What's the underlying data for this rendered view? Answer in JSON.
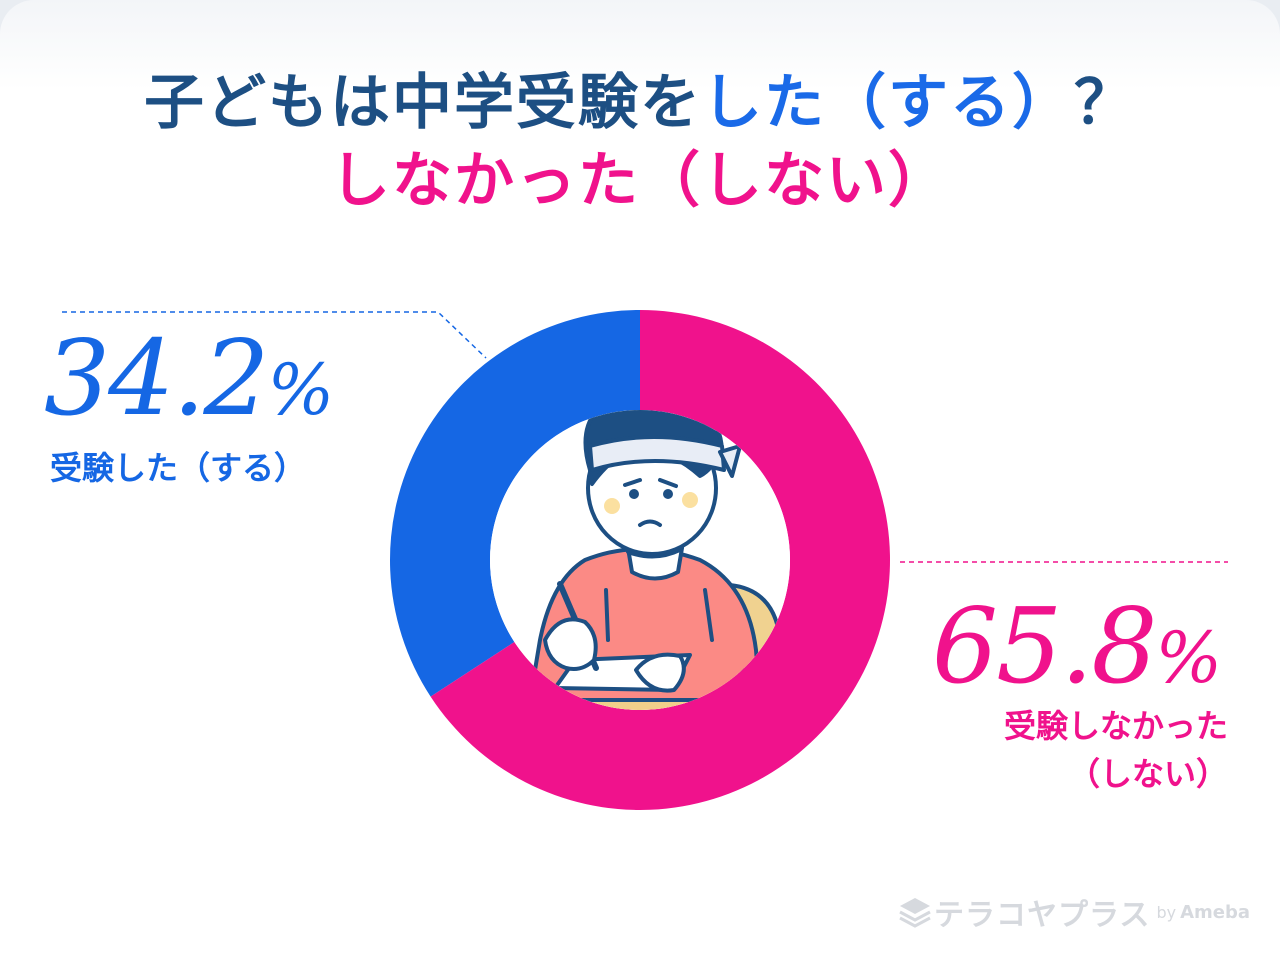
{
  "header": {
    "title_line1_prefix": "子どもは中学受験を",
    "title_line1_highlight": "した（する）",
    "title_line1_suffix": "？",
    "title_line2": "しなかった（しない）"
  },
  "colors": {
    "did": "#1567e4",
    "did_not": "#f0128c",
    "title_navy": "#1d4f83"
  },
  "chart_data": {
    "type": "pie",
    "style": "donut",
    "slices": [
      {
        "label": "受験した（する）",
        "value": 34.2,
        "value_text": "34.2",
        "color": "#1567e4"
      },
      {
        "label": "受験しなかった（しない）",
        "label_line1": "受験しなかった",
        "label_line2": "（しない）",
        "value": 65.8,
        "value_text": "65.8",
        "color": "#f0128c"
      }
    ],
    "unit": "%",
    "center_illustration": "student-studying-illustration"
  },
  "footer": {
    "logo_text": "テラコヤプラス",
    "logo_by": "by",
    "logo_brand": "Ameba",
    "logo_icon": "stack-icon"
  }
}
